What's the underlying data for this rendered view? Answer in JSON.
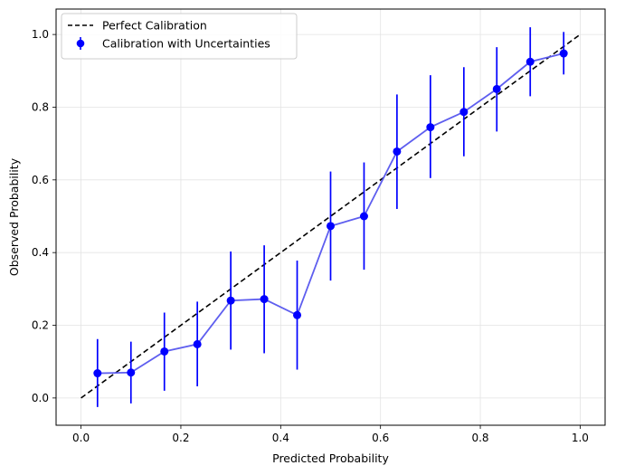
{
  "chart_data": {
    "type": "scatter",
    "title": "",
    "xlabel": "Predicted Probability",
    "ylabel": "Observed Probability",
    "xlim": [
      -0.05,
      1.05
    ],
    "ylim": [
      -0.075,
      1.07
    ],
    "xticks": [
      0.0,
      0.2,
      0.4,
      0.6,
      0.8,
      1.0
    ],
    "xtick_labels": [
      "0.0",
      "0.2",
      "0.4",
      "0.6",
      "0.8",
      "1.0"
    ],
    "yticks": [
      0.0,
      0.2,
      0.4,
      0.6,
      0.8,
      1.0
    ],
    "ytick_labels": [
      "0.0",
      "0.2",
      "0.4",
      "0.6",
      "0.8",
      "1.0"
    ],
    "grid": true,
    "legend_position": "top-left",
    "legend": [
      {
        "label": "Perfect Calibration",
        "style": "dashed-line"
      },
      {
        "label": "Calibration with Uncertainties",
        "style": "errorbar-marker"
      }
    ],
    "series": [
      {
        "name": "Perfect Calibration",
        "kind": "line",
        "style": "dashed",
        "color": "#000000",
        "x": [
          0.0,
          1.0
        ],
        "y": [
          0.0,
          1.0
        ]
      },
      {
        "name": "Calibration with Uncertainties",
        "kind": "errorbar",
        "color": "#0000ff",
        "line_color": "#5555ee",
        "x": [
          0.033,
          0.1,
          0.167,
          0.233,
          0.3,
          0.367,
          0.433,
          0.5,
          0.567,
          0.633,
          0.7,
          0.767,
          0.833,
          0.9,
          0.967
        ],
        "y": [
          0.068,
          0.07,
          0.128,
          0.148,
          0.268,
          0.272,
          0.228,
          0.473,
          0.5,
          0.678,
          0.745,
          0.787,
          0.85,
          0.925,
          0.948
        ],
        "y_lower": [
          -0.025,
          -0.015,
          0.02,
          0.032,
          0.133,
          0.123,
          0.078,
          0.323,
          0.353,
          0.52,
          0.605,
          0.665,
          0.733,
          0.83,
          0.89
        ],
        "y_upper": [
          0.162,
          0.155,
          0.235,
          0.265,
          0.403,
          0.42,
          0.378,
          0.623,
          0.648,
          0.835,
          0.888,
          0.91,
          0.965,
          1.02,
          1.007
        ]
      }
    ]
  }
}
